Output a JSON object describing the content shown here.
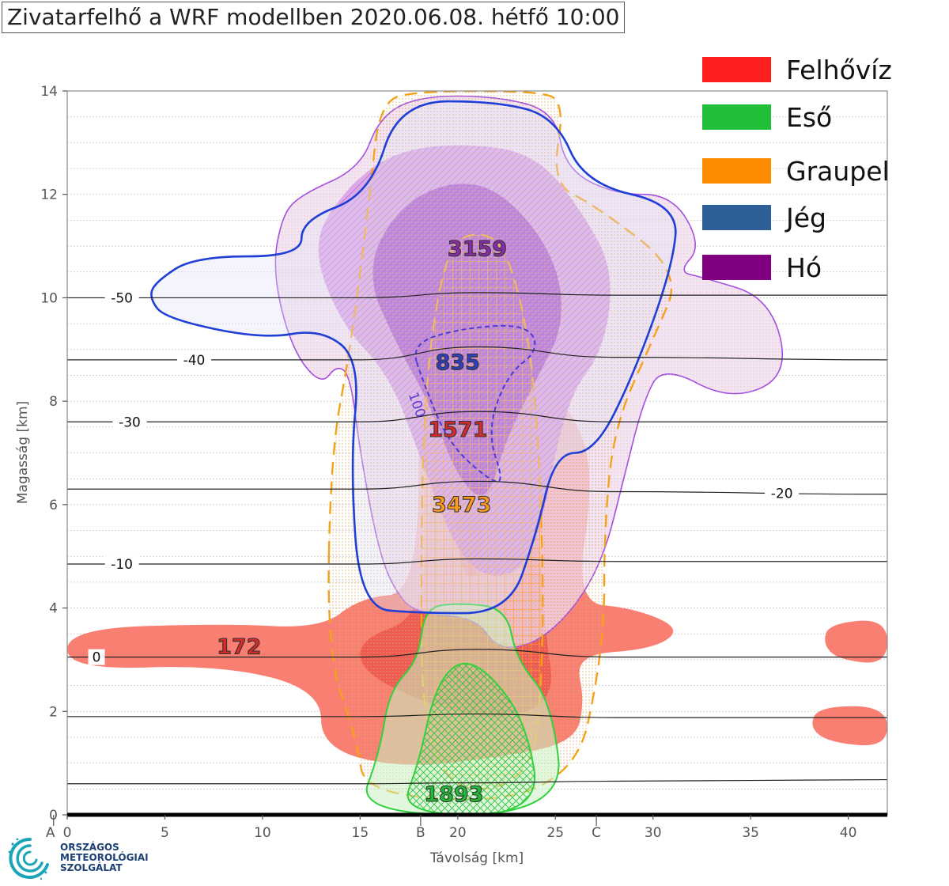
{
  "chart_data": {
    "type": "area",
    "title": "Zivatarfelhő a WRF modellben 2020.06.08. hétfő 10:00",
    "xlabel": "Távolság [km]",
    "ylabel": "Magasság [km]",
    "xlim": [
      0,
      42
    ],
    "ylim": [
      0,
      14
    ],
    "x_ticks": [
      0,
      5,
      10,
      15,
      20,
      25,
      30,
      35,
      40
    ],
    "y_ticks": [
      0,
      2,
      4,
      6,
      8,
      10,
      12,
      14
    ],
    "section_points": [
      {
        "label": "A",
        "x": -0.7
      },
      {
        "label": "B",
        "x": 18.1
      },
      {
        "label": "C",
        "x": 27.1
      }
    ],
    "legend": {
      "placement": "top-right",
      "entries": [
        {
          "name": "Felhővíz",
          "color": "#ff1f1f"
        },
        {
          "name": "Eső",
          "color": "#1fbf3a"
        },
        {
          "name": "Graupel",
          "color": "#ff8c00"
        },
        {
          "name": "Jég",
          "color": "#2f5f99"
        },
        {
          "name": "Hó",
          "color": "#800080"
        }
      ]
    },
    "isotherms": [
      {
        "value": "-50",
        "label_x": 2.8,
        "y": [
          10.0,
          10.0,
          10.0,
          10.1,
          10.05,
          10.05
        ]
      },
      {
        "value": "-40",
        "label_x": 6.5,
        "y": [
          8.8,
          8.8,
          8.8,
          9.05,
          8.85,
          8.8
        ]
      },
      {
        "value": "-30",
        "label_x": 3.2,
        "y": [
          7.6,
          7.6,
          7.6,
          7.8,
          7.6,
          7.6
        ]
      },
      {
        "value": "-20",
        "label_x": 36.6,
        "y": [
          6.3,
          6.3,
          6.3,
          6.45,
          6.25,
          6.2
        ]
      },
      {
        "value": "-10",
        "label_x": 2.8,
        "y": [
          4.85,
          4.85,
          4.85,
          4.95,
          4.9,
          4.9
        ]
      },
      {
        "value": "0",
        "label_x": 1.5,
        "y": [
          3.05,
          3.05,
          3.05,
          3.2,
          3.05,
          3.05
        ]
      },
      {
        "value": "",
        "label_x": null,
        "y": [
          1.9,
          1.9,
          1.9,
          1.95,
          1.88,
          1.88
        ]
      },
      {
        "value": "",
        "label_x": null,
        "y": [
          0.6,
          0.6,
          0.6,
          0.62,
          0.65,
          0.68
        ]
      }
    ],
    "isotherm_x": [
      0,
      10,
      15,
      21,
      28,
      42
    ],
    "maxima_labels": [
      {
        "text": "3159",
        "x": 21.0,
        "y": 10.95,
        "color": "#8b2aa8"
      },
      {
        "text": "835",
        "x": 20.0,
        "y": 8.75,
        "color": "#2f3fbf"
      },
      {
        "text": "1571",
        "x": 20.0,
        "y": 7.45,
        "color": "#d42a2a"
      },
      {
        "text": "3473",
        "x": 20.2,
        "y": 6.0,
        "color": "#ff9a1a"
      },
      {
        "text": "172",
        "x": 8.8,
        "y": 3.25,
        "color": "#d42a2a"
      },
      {
        "text": "1893",
        "x": 19.8,
        "y": 0.4,
        "color": "#22b83a"
      }
    ],
    "contour_labels": [
      {
        "text": "100",
        "x": 17.7,
        "y": 7.9,
        "color": "#5a3ad0",
        "rotate": 70
      }
    ],
    "cloud_water": {
      "outer": [
        [
          0,
          3.6
        ],
        [
          8,
          3.7
        ],
        [
          13,
          3.6
        ],
        [
          15,
          4.2
        ],
        [
          18,
          4.3
        ],
        [
          18,
          8.8
        ],
        [
          20,
          9.0
        ],
        [
          23,
          8.8
        ],
        [
          26,
          7.8
        ],
        [
          27,
          6.5
        ],
        [
          26,
          4.1
        ],
        [
          29,
          4.0
        ],
        [
          31.5,
          3.6
        ],
        [
          30,
          3.2
        ],
        [
          26,
          3.1
        ],
        [
          26.5,
          2.2
        ],
        [
          26,
          1.4
        ],
        [
          22,
          1.1
        ],
        [
          17,
          0.9
        ],
        [
          13,
          1.3
        ],
        [
          13,
          2.4
        ],
        [
          8,
          2.9
        ],
        [
          0,
          2.8
        ]
      ],
      "inner": [
        [
          15,
          3.4
        ],
        [
          18,
          3.8
        ],
        [
          18.5,
          5.5
        ],
        [
          19,
          8.2
        ],
        [
          21,
          8.7
        ],
        [
          23,
          8.3
        ],
        [
          24,
          6.0
        ],
        [
          24.5,
          3.5
        ],
        [
          25,
          2.2
        ],
        [
          22,
          1.8
        ],
        [
          18,
          2.2
        ],
        [
          15,
          2.8
        ]
      ],
      "core": [
        [
          19.8,
          7.0
        ],
        [
          21,
          7.2
        ],
        [
          21.5,
          5.5
        ],
        [
          21,
          4.5
        ],
        [
          20,
          4.8
        ]
      ],
      "right_a": [
        [
          39,
          3.7
        ],
        [
          42,
          3.8
        ],
        [
          42,
          2.9
        ],
        [
          39.5,
          3.0
        ],
        [
          38.7,
          3.3
        ]
      ],
      "right_b": [
        [
          38.5,
          2.1
        ],
        [
          42,
          2.1
        ],
        [
          42,
          1.3
        ],
        [
          39,
          1.4
        ],
        [
          38,
          1.7
        ]
      ]
    },
    "rain": {
      "outer": [
        [
          14.8,
          0
        ],
        [
          16,
          1.2
        ],
        [
          16.5,
          2.4
        ],
        [
          18,
          3.0
        ],
        [
          18.3,
          4.0
        ],
        [
          20,
          4.1
        ],
        [
          22.5,
          4.0
        ],
        [
          23,
          3.0
        ],
        [
          24.8,
          2.2
        ],
        [
          25.5,
          0
        ]
      ],
      "inner": [
        [
          17,
          0
        ],
        [
          18,
          1.0
        ],
        [
          18.8,
          2.4
        ],
        [
          20,
          3.0
        ],
        [
          21.5,
          2.8
        ],
        [
          23.5,
          1.8
        ],
        [
          24.3,
          0
        ]
      ]
    },
    "graupel": {
      "outer": [
        [
          13.3,
          3.1
        ],
        [
          13.5,
          7.0
        ],
        [
          14.5,
          9.0
        ],
        [
          15.5,
          12.0
        ],
        [
          16,
          13.8
        ],
        [
          18,
          14.0
        ],
        [
          24,
          14.0
        ],
        [
          25.5,
          13.8
        ],
        [
          24.8,
          12.2
        ],
        [
          27,
          11.8
        ],
        [
          31.5,
          10.5
        ],
        [
          30,
          9.2
        ],
        [
          28,
          7.5
        ],
        [
          27.5,
          5.5
        ],
        [
          27.5,
          3.2
        ],
        [
          25.8,
          0.3
        ],
        [
          15.3,
          0.3
        ],
        [
          14.8,
          1.5
        ]
      ],
      "inner": [
        [
          18.2,
          0.5
        ],
        [
          18.1,
          6.0
        ],
        [
          18.5,
          9.0
        ],
        [
          19.5,
          11.0
        ],
        [
          21,
          11.3
        ],
        [
          22.5,
          11.0
        ],
        [
          23.8,
          9.0
        ],
        [
          24.3,
          6.0
        ],
        [
          24.4,
          3.0
        ],
        [
          23.8,
          0.5
        ]
      ]
    },
    "ice": {
      "outer": [
        [
          4.2,
          10.0
        ],
        [
          5,
          9.6
        ],
        [
          10,
          9.2
        ],
        [
          13,
          9.4
        ],
        [
          15,
          8.8
        ],
        [
          14.5,
          6.8
        ],
        [
          15,
          4.0
        ],
        [
          18,
          3.9
        ],
        [
          22.6,
          3.9
        ],
        [
          24,
          5.4
        ],
        [
          25,
          7.0
        ],
        [
          27,
          7.0
        ],
        [
          29,
          8.5
        ],
        [
          31,
          10.6
        ],
        [
          31.3,
          11.8
        ],
        [
          26.5,
          12.2
        ],
        [
          25,
          13.5
        ],
        [
          22,
          13.8
        ],
        [
          17,
          13.8
        ],
        [
          15.5,
          12.0
        ],
        [
          12,
          11.5
        ],
        [
          12,
          10.8
        ],
        [
          6.5,
          10.8
        ],
        [
          4.5,
          10.3
        ]
      ],
      "inner": [
        [
          17.6,
          9.1
        ],
        [
          18.2,
          8.4
        ],
        [
          19.5,
          7.2
        ],
        [
          21.5,
          6.5
        ],
        [
          22.4,
          6.4
        ],
        [
          21.5,
          7.4
        ],
        [
          22.5,
          8.5
        ],
        [
          24.2,
          9.0
        ],
        [
          23.5,
          9.5
        ],
        [
          20,
          9.4
        ]
      ]
    },
    "snow": {
      "outer": [
        [
          11,
          11.6
        ],
        [
          12,
          12.0
        ],
        [
          15,
          12.5
        ],
        [
          16,
          13.5
        ],
        [
          18,
          13.9
        ],
        [
          22,
          13.9
        ],
        [
          25,
          13.6
        ],
        [
          25.5,
          12.5
        ],
        [
          28,
          12.0
        ],
        [
          31,
          12.0
        ],
        [
          32.5,
          11.0
        ],
        [
          31.3,
          10.5
        ],
        [
          32.5,
          10.4
        ],
        [
          36,
          10.0
        ],
        [
          37,
          8.5
        ],
        [
          34,
          8.0
        ],
        [
          30.5,
          8.7
        ],
        [
          29.5,
          8.0
        ],
        [
          28.5,
          6.5
        ],
        [
          27.5,
          5.0
        ],
        [
          26,
          4.0
        ],
        [
          24,
          3.3
        ],
        [
          22,
          3.2
        ],
        [
          21,
          3.8
        ],
        [
          18,
          3.9
        ],
        [
          17,
          4.2
        ],
        [
          16,
          5.0
        ],
        [
          15,
          7.0
        ],
        [
          14.5,
          8.5
        ],
        [
          13.8,
          8.7
        ],
        [
          13,
          8.3
        ],
        [
          11.5,
          9.0
        ],
        [
          10.5,
          10.5
        ]
      ],
      "mid": [
        [
          12.5,
          11.0
        ],
        [
          14,
          12.0
        ],
        [
          16.5,
          12.8
        ],
        [
          20,
          13.0
        ],
        [
          24,
          12.8
        ],
        [
          26.5,
          11.6
        ],
        [
          28,
          10.5
        ],
        [
          27.5,
          9.0
        ],
        [
          25.5,
          8.0
        ],
        [
          24,
          5.0
        ],
        [
          22,
          4.5
        ],
        [
          20,
          5.0
        ],
        [
          18,
          7.0
        ],
        [
          16.5,
          8.5
        ],
        [
          14,
          9.5
        ]
      ],
      "core": [
        [
          15.2,
          10.5
        ],
        [
          17,
          11.8
        ],
        [
          20,
          12.3
        ],
        [
          22.5,
          12.0
        ],
        [
          25,
          10.8
        ],
        [
          25.5,
          9.5
        ],
        [
          24,
          8.4
        ],
        [
          22.5,
          7.3
        ],
        [
          21.5,
          6.0
        ],
        [
          20,
          6.5
        ],
        [
          18.5,
          8.0
        ],
        [
          17,
          9.0
        ]
      ]
    }
  },
  "logo": {
    "line1": "ORSZÁGOS",
    "line2": "METEOROLÓGIAI",
    "line3": "SZOLGÁLAT"
  }
}
